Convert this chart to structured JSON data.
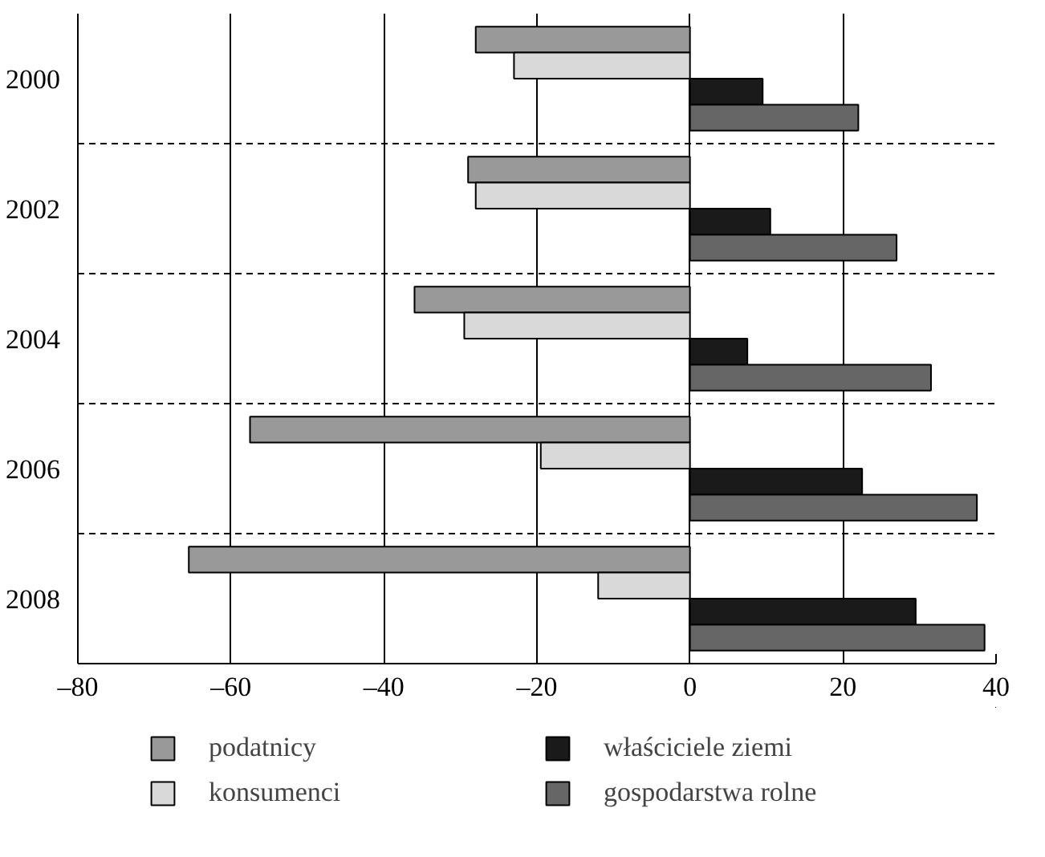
{
  "chart_data": {
    "type": "bar",
    "orientation": "horizontal",
    "categories": [
      "2000",
      "2002",
      "2004",
      "2006",
      "2008"
    ],
    "series": [
      {
        "name": "podatnicy",
        "color": "#999999",
        "values": [
          -28,
          -29,
          -36,
          -57.5,
          -65.5
        ]
      },
      {
        "name": "konsumenci",
        "color": "#d9d9d9",
        "values": [
          -23,
          -28,
          -29.5,
          -19.5,
          -12
        ]
      },
      {
        "name": "właściciele ziemi",
        "color": "#1a1a1a",
        "values": [
          9.5,
          10.5,
          7.5,
          22.5,
          29.5
        ]
      },
      {
        "name": "gospodarstwa rolne",
        "color": "#666666",
        "values": [
          22,
          27,
          31.5,
          37.5,
          38.5
        ]
      }
    ],
    "xlim": [
      -80,
      40
    ],
    "xticks": [
      {
        "value": -80,
        "label": "–80"
      },
      {
        "value": -60,
        "label": "–60"
      },
      {
        "value": -40,
        "label": "–40"
      },
      {
        "value": -20,
        "label": "–20"
      },
      0,
      20,
      40
    ],
    "grid": true,
    "legend": "bottom"
  }
}
